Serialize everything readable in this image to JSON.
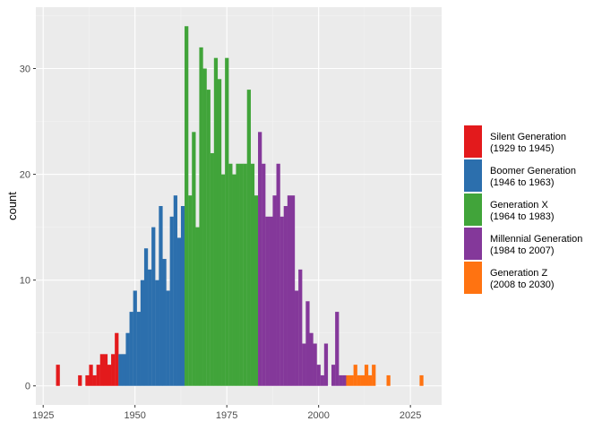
{
  "chart_data": {
    "type": "bar",
    "subtype": "histogram",
    "xlabel": "",
    "ylabel": "count",
    "xlim": [
      1923,
      2033.5
    ],
    "ylim": [
      -1.8,
      35.8
    ],
    "xticks": [
      1925,
      1950,
      1975,
      2000,
      2025
    ],
    "yticks": [
      0,
      10,
      20,
      30
    ],
    "grid": true,
    "legend_position": "right",
    "colors": {
      "panel_bg": "#ebebeb",
      "grid_major": "#ffffff",
      "grid_minor": "#f4f4f4"
    },
    "series": [
      {
        "name": "Silent Generation",
        "range_label": "(1929 to 1945)",
        "color": "#e31a1c",
        "x": [
          1929,
          1935,
          1937,
          1938,
          1939,
          1940,
          1941,
          1942,
          1943,
          1944,
          1945
        ],
        "values": [
          2,
          1,
          1,
          2,
          1,
          2,
          3,
          3,
          2,
          3,
          5
        ]
      },
      {
        "name": "Boomer Generation",
        "range_label": "(1946 to 1963)",
        "color": "#2c6fad",
        "x": [
          1946,
          1947,
          1948,
          1949,
          1950,
          1951,
          1952,
          1953,
          1954,
          1955,
          1956,
          1957,
          1958,
          1959,
          1960,
          1961,
          1962,
          1963
        ],
        "values": [
          3,
          3,
          5,
          7,
          9,
          7,
          10,
          13,
          11,
          15,
          10,
          17,
          12,
          9,
          16,
          18,
          14,
          17
        ]
      },
      {
        "name": "Generation X",
        "range_label": "(1964 to 1983)",
        "color": "#41a43a",
        "x": [
          1964,
          1965,
          1966,
          1967,
          1968,
          1969,
          1970,
          1971,
          1972,
          1973,
          1974,
          1975,
          1976,
          1977,
          1978,
          1979,
          1980,
          1981,
          1982,
          1983
        ],
        "values": [
          34,
          18,
          24,
          15,
          32,
          30,
          28,
          22,
          31,
          29,
          20,
          31,
          21,
          20,
          21,
          21,
          21,
          28,
          21,
          18
        ],
        "value_overrides_note": ""
      },
      {
        "name": "Millennial Generation",
        "range_label": "(1984 to 2007)",
        "color": "#84389a",
        "x": [
          1984,
          1985,
          1986,
          1987,
          1988,
          1989,
          1990,
          1991,
          1992,
          1993,
          1994,
          1995,
          1996,
          1997,
          1998,
          1999,
          2000,
          2001,
          2002,
          2003,
          2004,
          2005,
          2006,
          2007
        ],
        "values": [
          24,
          21,
          16,
          16,
          18,
          21,
          16,
          17,
          18,
          18,
          9,
          11,
          4,
          8,
          5,
          4,
          2,
          1,
          4,
          0,
          2,
          7,
          1,
          1
        ]
      },
      {
        "name": "Generation Z",
        "range_label": "(2008 to 2030)",
        "color": "#ff7311",
        "x": [
          2008,
          2009,
          2010,
          2011,
          2012,
          2013,
          2014,
          2015,
          2019,
          2028
        ],
        "values": [
          1,
          1,
          2,
          1,
          1,
          2,
          1,
          2,
          1,
          1
        ]
      }
    ]
  }
}
